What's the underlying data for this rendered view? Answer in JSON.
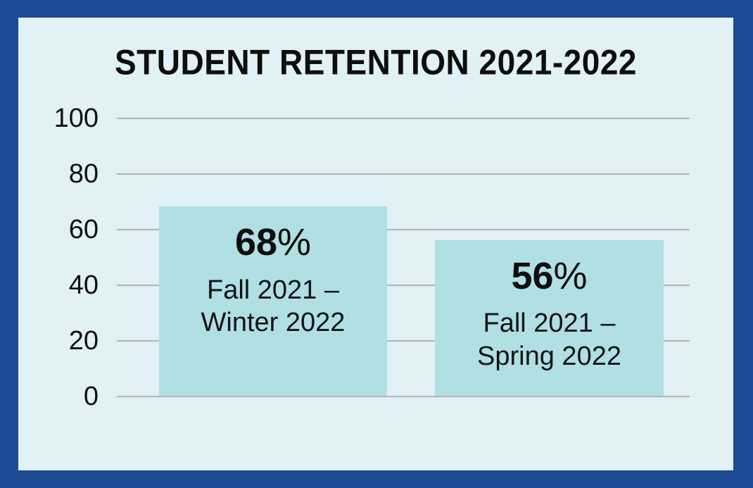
{
  "frame": {
    "border_color": "#1d4b94",
    "background_color": "#e1f1f6"
  },
  "chart_data": {
    "type": "bar",
    "title": "STUDENT RETENTION 2021-2022",
    "categories": [
      "Fall 2021 – Winter 2022",
      "Fall 2021 – Spring 2022"
    ],
    "values": [
      68,
      56
    ],
    "value_labels": [
      "68%",
      "56%"
    ],
    "xlabel": "",
    "ylabel": "",
    "ylim": [
      0,
      100
    ],
    "yticks": [
      "100",
      "80",
      "60",
      "40",
      "20",
      "0"
    ],
    "grid": true,
    "legend_position": "none",
    "colors": {
      "bar": "#b0dfe4",
      "gridline": "#b5b9bb",
      "text": "#0e0e0e"
    },
    "bars": [
      {
        "value": "68",
        "percent_sign": "%",
        "label_line1": "Fall 2021 –",
        "label_line2": "Winter 2022"
      },
      {
        "value": "56",
        "percent_sign": "%",
        "label_line1": "Fall 2021 –",
        "label_line2": "Spring 2022"
      }
    ]
  }
}
